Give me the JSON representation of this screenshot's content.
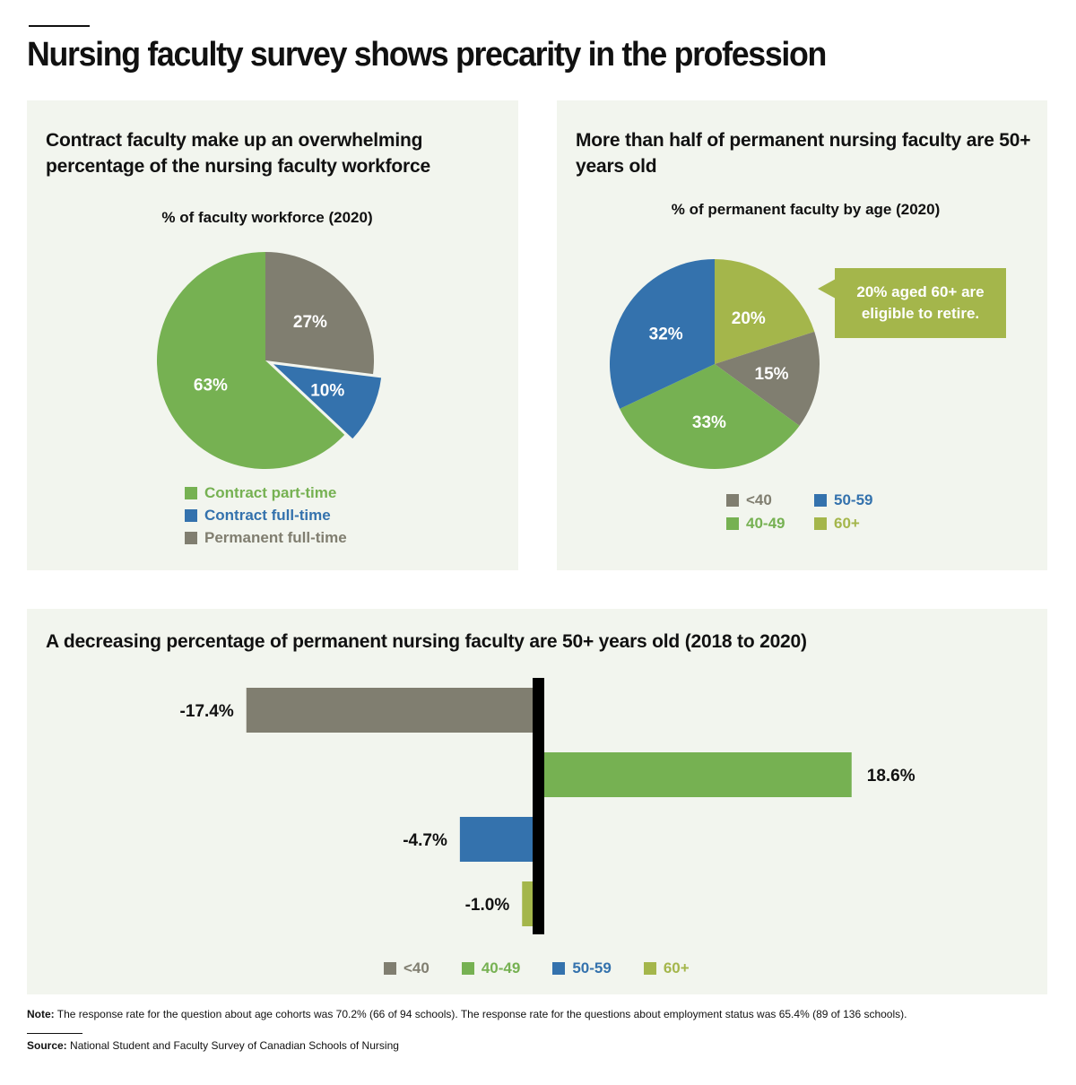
{
  "title": "Nursing faculty survey shows precarity in the profession",
  "colors": {
    "lt40": "#807e70",
    "40-49": "#76b152",
    "50-59": "#3472ad",
    "60+": "#a4b64b",
    "contract_part_time": "#76b152",
    "contract_full_time": "#3472ad",
    "permanent_full_time": "#807e70"
  },
  "chart_data": [
    {
      "type": "pie",
      "title": "Contract faculty make up an overwhelming percentage of the nursing faculty workforce",
      "subtitle": "% of faculty workforce (2020)",
      "slices": [
        {
          "label": "Permanent full-time",
          "value": 27,
          "display": "27%",
          "color": "#807e70"
        },
        {
          "label": "Contract full-time",
          "value": 10,
          "display": "10%",
          "color": "#3472ad"
        },
        {
          "label": "Contract part-time",
          "value": 63,
          "display": "63%",
          "color": "#76b152"
        }
      ],
      "legend": [
        "Contract part-time",
        "Contract full-time",
        "Permanent full-time"
      ]
    },
    {
      "type": "pie",
      "title": "More than half of permanent nursing faculty are 50+ years old",
      "subtitle": "% of permanent faculty by age (2020)",
      "slices": [
        {
          "label": "60+",
          "value": 20,
          "display": "20%",
          "color": "#a4b64b"
        },
        {
          "label": "<40",
          "value": 15,
          "display": "15%",
          "color": "#807e70"
        },
        {
          "label": "40-49",
          "value": 33,
          "display": "33%",
          "color": "#76b152"
        },
        {
          "label": "50-59",
          "value": 32,
          "display": "32%",
          "color": "#3472ad"
        }
      ],
      "legend": [
        "<40",
        "50-59",
        "40-49",
        "60+"
      ],
      "annotation": "20% aged 60+ are eligible to retire."
    },
    {
      "type": "bar",
      "orientation": "horizontal",
      "title": "A decreasing percentage of permanent nursing faculty are 50+ years old (2018 to 2020)",
      "categories": [
        "<40",
        "40-49",
        "50-59",
        "60+"
      ],
      "values": [
        -17.4,
        18.6,
        -4.7,
        -1.0
      ],
      "labels": [
        "-17.4%",
        "18.6%",
        "-4.7%",
        "-1.0%"
      ],
      "colors": [
        "#807e70",
        "#76b152",
        "#3472ad",
        "#a4b64b"
      ],
      "legend": [
        "<40",
        "40-49",
        "50-59",
        "60+"
      ]
    }
  ],
  "note": {
    "label": "Note:",
    "text": "The response rate for the question about age cohorts was 70.2% (66 of 94 schools). The response rate for the questions about employment status was 65.4% (89 of 136 schools)."
  },
  "source": {
    "label": "Source:",
    "text": "National Student and Faculty Survey of Canadian Schools of Nursing"
  }
}
